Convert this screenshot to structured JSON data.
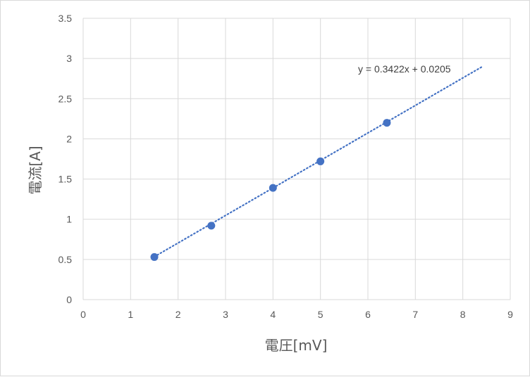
{
  "chart_data": {
    "type": "scatter",
    "title": "",
    "xlabel": "電圧[mV]",
    "ylabel": "電流[A]",
    "xlim": [
      0,
      9
    ],
    "ylim": [
      0,
      3.5
    ],
    "x_ticks": [
      "0",
      "1",
      "2",
      "3",
      "4",
      "5",
      "6",
      "7",
      "8",
      "9"
    ],
    "y_ticks": [
      "0",
      "0.5",
      "1",
      "1.5",
      "2",
      "2.5",
      "3",
      "3.5"
    ],
    "grid": true,
    "legend": "none",
    "series": [
      {
        "points": [
          {
            "x": 1.5,
            "y": 0.53
          },
          {
            "x": 2.7,
            "y": 0.92
          },
          {
            "x": 4.0,
            "y": 1.39
          },
          {
            "x": 5.0,
            "y": 1.72
          },
          {
            "x": 6.4,
            "y": 2.2
          }
        ],
        "color": "#4472c4"
      }
    ],
    "trendline": {
      "type": "linear",
      "slope": 0.3422,
      "intercept": 0.0205,
      "x_range": [
        1.5,
        8.4
      ],
      "equation": "y = 0.3422x + 0.0205",
      "color": "#4472c4",
      "style": "dotted"
    }
  }
}
